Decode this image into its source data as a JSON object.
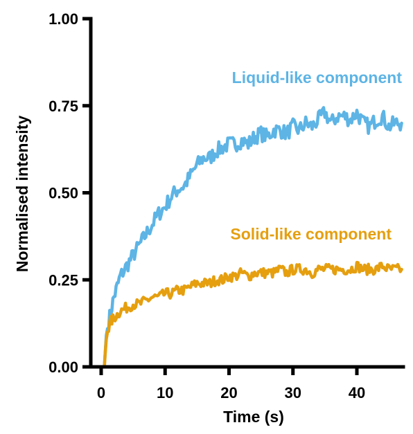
{
  "chart_data": {
    "type": "line",
    "xlabel": "Time (s)",
    "ylabel": "Normalised intensity",
    "xlim": [
      0,
      47
    ],
    "ylim": [
      0,
      1
    ],
    "xticks": [
      0,
      10,
      20,
      30,
      40
    ],
    "xtick_labels": [
      "0",
      "10",
      "20",
      "30",
      "40"
    ],
    "yticks": [
      0,
      0.25,
      0.5,
      0.75,
      1.0
    ],
    "ytick_labels": [
      "0.00",
      "0.25",
      "0.50",
      "0.75",
      "1.00"
    ],
    "grid": false,
    "legend": "none (series labelled directly on plot)",
    "series": [
      {
        "name": "Liquid-like component",
        "color": "#5DB4E5",
        "x": [
          0.5,
          0.6,
          0.8,
          1,
          1.5,
          2,
          2.5,
          3,
          4,
          5,
          6,
          7,
          8,
          9,
          10,
          11,
          12,
          13,
          14,
          15,
          16,
          17,
          18,
          19,
          20,
          21,
          22,
          23,
          24,
          25,
          26,
          27,
          28,
          29,
          30,
          31,
          32,
          33,
          34,
          35,
          36,
          37,
          38,
          39,
          40,
          41,
          42,
          43,
          44,
          45,
          46,
          47
        ],
        "y": [
          0.0,
          0.03,
          0.09,
          0.11,
          0.16,
          0.2,
          0.23,
          0.26,
          0.29,
          0.32,
          0.35,
          0.38,
          0.41,
          0.44,
          0.46,
          0.49,
          0.51,
          0.52,
          0.55,
          0.58,
          0.6,
          0.6,
          0.62,
          0.63,
          0.64,
          0.64,
          0.65,
          0.64,
          0.66,
          0.67,
          0.66,
          0.68,
          0.68,
          0.67,
          0.69,
          0.68,
          0.7,
          0.69,
          0.71,
          0.73,
          0.7,
          0.72,
          0.72,
          0.71,
          0.73,
          0.7,
          0.69,
          0.71,
          0.72,
          0.69,
          0.7,
          0.7
        ]
      },
      {
        "name": "Solid-like component",
        "color": "#E59F0F",
        "x": [
          0.5,
          0.6,
          0.8,
          1,
          1.5,
          2,
          2.5,
          3,
          4,
          5,
          6,
          7,
          8,
          9,
          10,
          11,
          12,
          13,
          14,
          15,
          16,
          17,
          18,
          19,
          20,
          21,
          22,
          23,
          24,
          25,
          26,
          27,
          28,
          29,
          30,
          31,
          32,
          33,
          34,
          35,
          36,
          37,
          38,
          39,
          40,
          41,
          42,
          43,
          44,
          45,
          46,
          47
        ],
        "y": [
          0.0,
          0.03,
          0.08,
          0.1,
          0.13,
          0.14,
          0.15,
          0.16,
          0.17,
          0.18,
          0.18,
          0.19,
          0.2,
          0.2,
          0.21,
          0.21,
          0.22,
          0.22,
          0.23,
          0.24,
          0.24,
          0.24,
          0.25,
          0.25,
          0.26,
          0.26,
          0.27,
          0.26,
          0.27,
          0.27,
          0.27,
          0.27,
          0.28,
          0.27,
          0.28,
          0.28,
          0.28,
          0.27,
          0.28,
          0.28,
          0.28,
          0.28,
          0.28,
          0.28,
          0.29,
          0.28,
          0.28,
          0.28,
          0.29,
          0.28,
          0.28,
          0.28
        ]
      }
    ]
  }
}
